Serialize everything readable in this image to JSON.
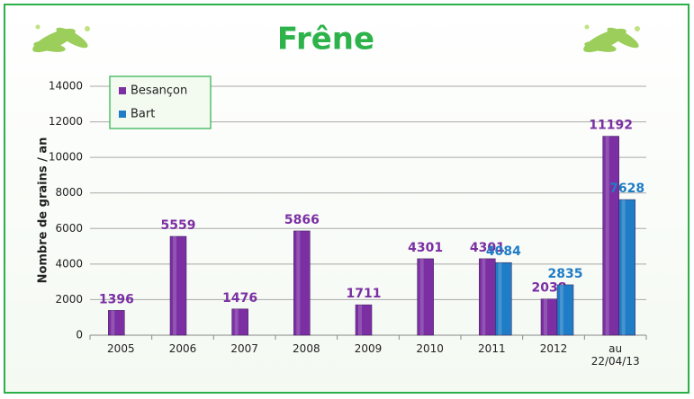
{
  "chart_data": {
    "type": "bar",
    "title": "Frêne",
    "y_label": "Nombre de grains / an",
    "categories": [
      "2005",
      "2006",
      "2007",
      "2008",
      "2009",
      "2010",
      "2011",
      "2012",
      "au 22/04/13"
    ],
    "series": [
      {
        "name": "Besançon",
        "color": "#7b2fa3",
        "values": [
          1396,
          5559,
          1476,
          5866,
          1711,
          4301,
          4301,
          2038,
          11192
        ]
      },
      {
        "name": "Bart",
        "color": "#1f7cc6",
        "values": [
          null,
          null,
          null,
          null,
          null,
          null,
          4084,
          2835,
          7628
        ]
      }
    ],
    "ylim": [
      0,
      14000
    ],
    "yticks": [
      0,
      2000,
      4000,
      6000,
      8000,
      10000,
      12000,
      14000
    ],
    "grid": true,
    "legend": "upper left"
  }
}
